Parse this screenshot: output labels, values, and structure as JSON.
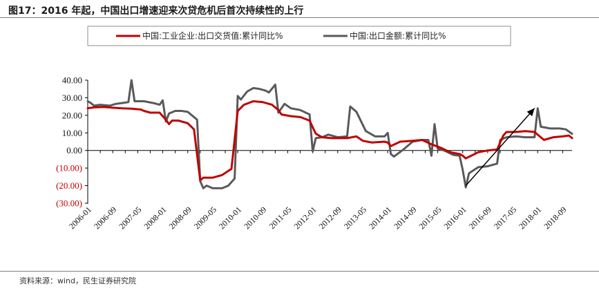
{
  "title": "图17：2016 年起，中国出口增速迎来次贷危机后首次持续性的上行",
  "source": "资料来源：wind，民生证券研究院",
  "chart_data": {
    "type": "line",
    "title": "",
    "xlabel": "",
    "ylabel": "",
    "ylim": [
      -30,
      40
    ],
    "y_ticks": [
      "40.00",
      "30.00",
      "20.00",
      "10.00",
      "0.00",
      "(10.00)",
      "(20.00)",
      "(30.00)"
    ],
    "y_tick_values": [
      40,
      30,
      20,
      10,
      0,
      -10,
      -20,
      -30
    ],
    "x_range": [
      "2006-01",
      "2018-12"
    ],
    "x_tick_labels": [
      "2006-01",
      "2006-09",
      "2007-05",
      "2008-01",
      "2008-09",
      "2009-05",
      "2010-01",
      "2010-09",
      "2011-05",
      "2012-01",
      "2012-09",
      "2013-05",
      "2014-01",
      "2014-09",
      "2015-05",
      "2016-01",
      "2016-09",
      "2017-05",
      "2018-01",
      "2018-09"
    ],
    "legend_position": "top",
    "grid": false,
    "annotation": {
      "type": "arrow",
      "from": [
        "2016-02",
        -20
      ],
      "to": [
        "2017-12",
        24
      ]
    },
    "series": [
      {
        "name": "中国:工业企业:出口交货值:累计同比%",
        "color": "#c00000",
        "points": [
          [
            "2006-01",
            24
          ],
          [
            "2006-03",
            24.5
          ],
          [
            "2006-06",
            24.8
          ],
          [
            "2006-09",
            24.3
          ],
          [
            "2006-12",
            24.0
          ],
          [
            "2007-03",
            23.8
          ],
          [
            "2007-06",
            23.3
          ],
          [
            "2007-07",
            22.5
          ],
          [
            "2007-09",
            21.5
          ],
          [
            "2007-12",
            21.5
          ],
          [
            "2008-02",
            17.5
          ],
          [
            "2008-03",
            15.0
          ],
          [
            "2008-04",
            17.0
          ],
          [
            "2008-06",
            17.0
          ],
          [
            "2008-09",
            15.5
          ],
          [
            "2008-11",
            12.0
          ],
          [
            "2009-01",
            -17.0
          ],
          [
            "2009-02",
            -15.5
          ],
          [
            "2009-05",
            -15.5
          ],
          [
            "2009-08",
            -14.0
          ],
          [
            "2009-11",
            -10.5
          ],
          [
            "2010-01",
            22.5
          ],
          [
            "2010-03",
            26.0
          ],
          [
            "2010-06",
            28.0
          ],
          [
            "2010-09",
            27.5
          ],
          [
            "2010-12",
            26.0
          ],
          [
            "2011-02",
            23.0
          ],
          [
            "2011-03",
            20.5
          ],
          [
            "2011-06",
            19.5
          ],
          [
            "2011-09",
            19.0
          ],
          [
            "2011-12",
            17.0
          ],
          [
            "2012-02",
            9.5
          ],
          [
            "2012-04",
            7.5
          ],
          [
            "2012-07",
            7.0
          ],
          [
            "2012-10",
            7.0
          ],
          [
            "2012-12",
            7.0
          ],
          [
            "2013-03",
            8.0
          ],
          [
            "2013-05",
            5.5
          ],
          [
            "2013-08",
            4.5
          ],
          [
            "2013-12",
            5.0
          ],
          [
            "2014-01",
            4.5
          ],
          [
            "2014-02",
            2.5
          ],
          [
            "2014-05",
            5.0
          ],
          [
            "2014-09",
            5.5
          ],
          [
            "2014-12",
            6.0
          ],
          [
            "2015-03",
            3.5
          ],
          [
            "2015-06",
            1.5
          ],
          [
            "2015-09",
            -1.0
          ],
          [
            "2015-12",
            -2.0
          ],
          [
            "2016-01",
            -3.0
          ],
          [
            "2016-02",
            -4.5
          ],
          [
            "2016-06",
            -1.0
          ],
          [
            "2016-09",
            0.0
          ],
          [
            "2016-12",
            0.5
          ],
          [
            "2017-02",
            8.5
          ],
          [
            "2017-03",
            10.5
          ],
          [
            "2017-06",
            10.5
          ],
          [
            "2017-09",
            11.0
          ],
          [
            "2017-12",
            10.5
          ],
          [
            "2018-03",
            6.0
          ],
          [
            "2018-06",
            7.5
          ],
          [
            "2018-09",
            8.0
          ],
          [
            "2018-11",
            8.5
          ],
          [
            "2018-12",
            7.0
          ]
        ]
      },
      {
        "name": "中国:出口金额:累计同比%",
        "color": "#595959",
        "points": [
          [
            "2006-01",
            28.0
          ],
          [
            "2006-02",
            27.0
          ],
          [
            "2006-03",
            25.5
          ],
          [
            "2006-05",
            26.0
          ],
          [
            "2006-08",
            25.5
          ],
          [
            "2006-10",
            26.5
          ],
          [
            "2006-12",
            27.0
          ],
          [
            "2007-02",
            27.5
          ],
          [
            "2007-03",
            40.0
          ],
          [
            "2007-04",
            28.0
          ],
          [
            "2007-07",
            28.0
          ],
          [
            "2007-10",
            27.0
          ],
          [
            "2007-12",
            26.0
          ],
          [
            "2008-01",
            28.5
          ],
          [
            "2008-02",
            16.5
          ],
          [
            "2008-03",
            21.0
          ],
          [
            "2008-05",
            22.5
          ],
          [
            "2008-07",
            22.5
          ],
          [
            "2008-09",
            22.0
          ],
          [
            "2008-12",
            17.5
          ],
          [
            "2009-01",
            -17.5
          ],
          [
            "2009-02",
            -21.5
          ],
          [
            "2009-03",
            -20.0
          ],
          [
            "2009-05",
            -21.5
          ],
          [
            "2009-08",
            -21.5
          ],
          [
            "2009-10",
            -20.0
          ],
          [
            "2009-12",
            -16.0
          ],
          [
            "2010-01",
            31.0
          ],
          [
            "2010-02",
            29.0
          ],
          [
            "2010-04",
            33.5
          ],
          [
            "2010-06",
            35.5
          ],
          [
            "2010-08",
            35.0
          ],
          [
            "2010-10",
            34.0
          ],
          [
            "2010-11",
            33.0
          ],
          [
            "2011-01",
            37.5
          ],
          [
            "2011-02",
            21.5
          ],
          [
            "2011-04",
            26.5
          ],
          [
            "2011-06",
            24.0
          ],
          [
            "2011-09",
            23.0
          ],
          [
            "2011-12",
            20.5
          ],
          [
            "2012-01",
            -0.5
          ],
          [
            "2012-02",
            7.0
          ],
          [
            "2012-04",
            7.5
          ],
          [
            "2012-06",
            9.0
          ],
          [
            "2012-09",
            7.5
          ],
          [
            "2012-12",
            8.0
          ],
          [
            "2013-01",
            25.0
          ],
          [
            "2013-03",
            22.0
          ],
          [
            "2013-06",
            11.0
          ],
          [
            "2013-09",
            8.0
          ],
          [
            "2013-12",
            8.0
          ],
          [
            "2014-01",
            10.0
          ],
          [
            "2014-02",
            -2.0
          ],
          [
            "2014-03",
            -3.5
          ],
          [
            "2014-06",
            0.5
          ],
          [
            "2014-09",
            5.0
          ],
          [
            "2014-12",
            6.0
          ],
          [
            "2015-02",
            6.0
          ],
          [
            "2015-03",
            -3.0
          ],
          [
            "2015-04",
            15.0
          ],
          [
            "2015-05",
            1.0
          ],
          [
            "2015-07",
            0.0
          ],
          [
            "2015-10",
            -2.5
          ],
          [
            "2015-12",
            -3.0
          ],
          [
            "2016-01",
            -11.0
          ],
          [
            "2016-02",
            -21.0
          ],
          [
            "2016-03",
            -13.0
          ],
          [
            "2016-06",
            -9.5
          ],
          [
            "2016-09",
            -9.0
          ],
          [
            "2016-12",
            -7.5
          ],
          [
            "2017-01",
            6.0
          ],
          [
            "2017-03",
            7.5
          ],
          [
            "2017-06",
            8.0
          ],
          [
            "2017-09",
            7.5
          ],
          [
            "2017-12",
            7.5
          ],
          [
            "2018-01",
            24.0
          ],
          [
            "2018-02",
            13.5
          ],
          [
            "2018-05",
            12.5
          ],
          [
            "2018-08",
            12.5
          ],
          [
            "2018-10",
            12.0
          ],
          [
            "2018-12",
            9.5
          ]
        ]
      }
    ]
  }
}
